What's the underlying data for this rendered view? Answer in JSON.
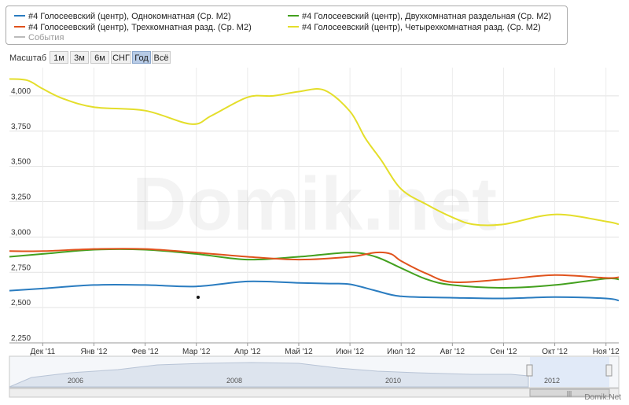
{
  "legend": {
    "items": [
      {
        "label": "#4 Голосеевский (центр), Однокомнатная (Ср. М2)",
        "color": "#2a7cc0"
      },
      {
        "label": "#4 Голосеевский (центр), Двухкомнатная раздельная (Ср. М2)",
        "color": "#43a01e"
      },
      {
        "label": "#4 Голосеевский (центр), Трехкомнатная разд. (Ср. М2)",
        "color": "#e0521c"
      },
      {
        "label": "#4 Голосеевский (центр), Четырехкомнатная разд. (Ср. М2)",
        "color": "#e4de2a"
      }
    ],
    "events_label": "События",
    "events_color": "#bbbbbb"
  },
  "zoom": {
    "label": "Масштаб",
    "buttons": [
      "1м",
      "3м",
      "6м",
      "СНГ",
      "Год",
      "Всё"
    ],
    "active": "Год"
  },
  "watermark": "Domik.net",
  "credit": "Domik.Net",
  "navigator": {
    "years": [
      "2006",
      "2008",
      "2010",
      "2012"
    ],
    "selected_label": "2012"
  },
  "chart_data": {
    "type": "line",
    "x_tick_labels": [
      "Дек '11",
      "Янв '12",
      "Фев '12",
      "Мар '12",
      "Апр '12",
      "Май '12",
      "Июн '12",
      "Июл '12",
      "Авг '12",
      "Сен '12",
      "Окт '12",
      "Ноя '12"
    ],
    "x_range": [
      -0.65,
      11.25
    ],
    "y_tick_labels": [
      "2,250",
      "2,500",
      "2,750",
      "3,000",
      "3,250",
      "3,500",
      "3,750",
      "4,000"
    ],
    "ylim": [
      2250,
      4200
    ],
    "grid": true,
    "legend_position": "top",
    "series": [
      {
        "name": "#4 Голосеевский (центр), Однокомнатная (Ср. М2)",
        "color": "#2a7cc0",
        "x": [
          -0.65,
          0,
          1,
          2,
          3,
          4,
          5,
          5.6,
          6,
          6.5,
          7,
          8,
          9,
          10,
          11,
          11.25
        ],
        "y": [
          2620,
          2635,
          2660,
          2660,
          2650,
          2685,
          2675,
          2670,
          2665,
          2620,
          2580,
          2570,
          2565,
          2575,
          2565,
          2550
        ]
      },
      {
        "name": "#4 Голосеевский (центр), Двухкомнатная раздельная (Ср. М2)",
        "color": "#43a01e",
        "x": [
          -0.65,
          0,
          1,
          2,
          3,
          4,
          5,
          6,
          6.5,
          7,
          7.5,
          8,
          9,
          10,
          11,
          11.25
        ],
        "y": [
          2860,
          2880,
          2910,
          2910,
          2880,
          2840,
          2860,
          2890,
          2860,
          2780,
          2700,
          2660,
          2640,
          2660,
          2705,
          2700
        ]
      },
      {
        "name": "#4 Голосеевский (центр), Трехкомнатная разд. (Ср. М2)",
        "color": "#e0521c",
        "x": [
          -0.65,
          0,
          1,
          2,
          3,
          4,
          5,
          6,
          6.5,
          6.8,
          7,
          7.5,
          8,
          9,
          10,
          11,
          11.25
        ],
        "y": [
          2900,
          2900,
          2915,
          2915,
          2890,
          2860,
          2840,
          2860,
          2890,
          2880,
          2830,
          2740,
          2680,
          2700,
          2730,
          2710,
          2715
        ]
      },
      {
        "name": "#4 Голосеевский (центр), Четырехкомнатная разд. (Ср. М2)",
        "color": "#e4de2a",
        "x": [
          -0.65,
          -0.3,
          0,
          0.4,
          1,
          2,
          2.9,
          3.3,
          4,
          4.5,
          5,
          5.5,
          6,
          6.3,
          6.6,
          7,
          7.5,
          8,
          8.4,
          9,
          10,
          11,
          11.25
        ],
        "y": [
          4120,
          4110,
          4050,
          3980,
          3920,
          3895,
          3800,
          3860,
          3990,
          4000,
          4030,
          4040,
          3890,
          3700,
          3550,
          3340,
          3230,
          3140,
          3090,
          3090,
          3160,
          3110,
          3090
        ]
      }
    ]
  }
}
